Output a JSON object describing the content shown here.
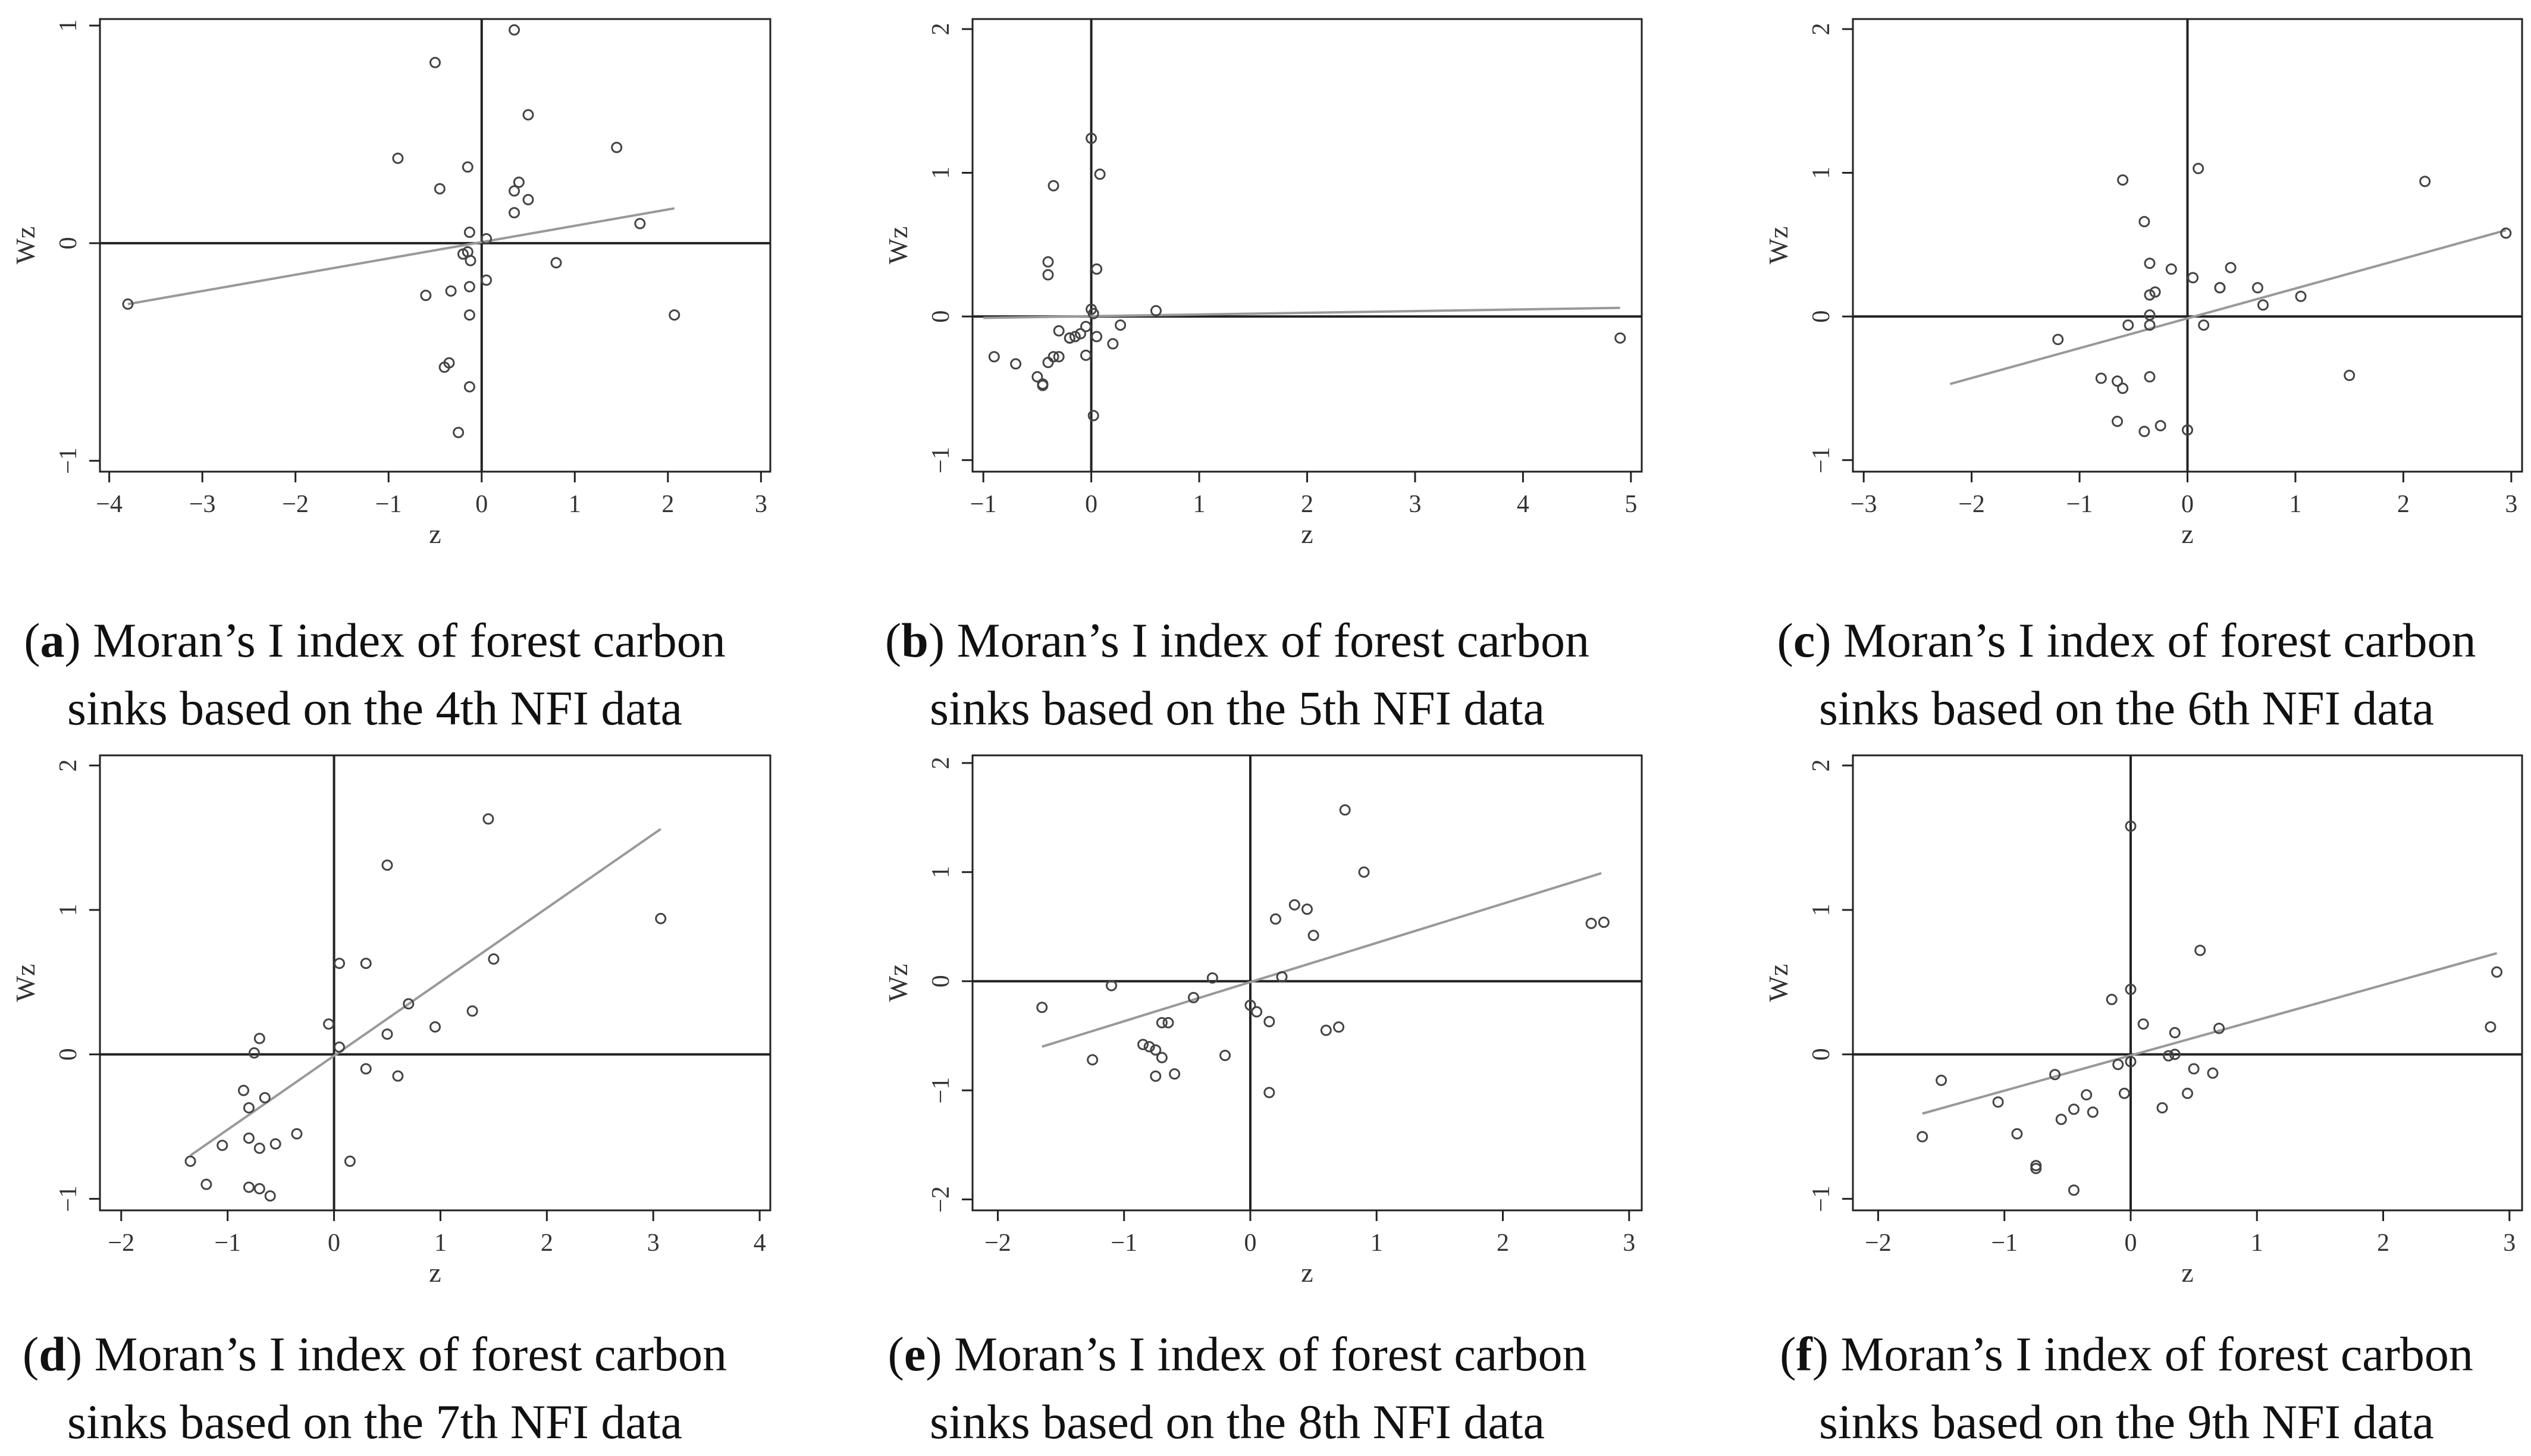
{
  "figure": {
    "x_axis_label": "z",
    "y_axis_label": "Wz"
  },
  "colors": {
    "frame": "#222222",
    "points": "#444444",
    "fit_line": "#999999",
    "text": "#333333"
  },
  "chart_data": [
    {
      "id": "a",
      "type": "scatter",
      "caption": {
        "letter": "a",
        "line1": "Moran’s I index of forest carbon",
        "line2": "sinks based on the 4th NFI data"
      },
      "xlabel": "z",
      "ylabel": "Wz",
      "xlim": [
        -4.1,
        3.1
      ],
      "ylim": [
        -1.05,
        1.03
      ],
      "xticks": [
        -4,
        -3,
        -2,
        -1,
        0,
        1,
        2,
        3
      ],
      "yticks": [
        -1,
        0,
        1
      ],
      "fit": {
        "x": [
          -3.8,
          2.07
        ],
        "y": [
          -0.28,
          0.16
        ]
      },
      "x": [
        -3.8,
        0.35,
        -0.5,
        0.5,
        -0.9,
        1.45,
        0.4,
        0.35,
        -0.15,
        0.5,
        -0.45,
        0.35,
        -0.13,
        0.05,
        -0.2,
        -0.15,
        -0.12,
        0.05,
        0.8,
        1.7,
        -0.13,
        2.07,
        -0.6,
        -0.33,
        -0.13,
        -0.35,
        -0.4,
        -0.13,
        -0.25
      ],
      "y": [
        -0.28,
        0.98,
        0.83,
        0.59,
        0.39,
        0.44,
        0.28,
        0.24,
        0.35,
        0.2,
        0.25,
        0.14,
        0.05,
        0.02,
        -0.05,
        -0.04,
        -0.08,
        -0.17,
        -0.09,
        0.09,
        -0.2,
        -0.33,
        -0.24,
        -0.22,
        -0.33,
        -0.55,
        -0.57,
        -0.66,
        -0.87
      ]
    },
    {
      "id": "b",
      "type": "scatter",
      "caption": {
        "letter": "b",
        "line1": "Moran’s I index of forest carbon",
        "line2": "sinks based on the 5th NFI data"
      },
      "xlabel": "z",
      "ylabel": "Wz",
      "xlim": [
        -1.1,
        5.1
      ],
      "ylim": [
        -1.08,
        2.07
      ],
      "xticks": [
        -1,
        0,
        1,
        2,
        3,
        4,
        5
      ],
      "yticks": [
        -1,
        0,
        1,
        2
      ],
      "fit": {
        "x": [
          -1.0,
          4.9
        ],
        "y": [
          -0.01,
          0.06
        ]
      },
      "x": [
        0.0,
        0.08,
        -0.35,
        -0.4,
        -0.4,
        0.05,
        0.6,
        0.0,
        0.02,
        4.9,
        -0.9,
        -0.7,
        -0.5,
        -0.45,
        -0.4,
        -0.35,
        -0.3,
        -0.2,
        -0.15,
        -0.1,
        -0.05,
        -0.3,
        0.05,
        0.2,
        0.27,
        -0.45,
        0.02,
        -0.05,
        -0.2
      ],
      "y": [
        1.24,
        0.99,
        0.91,
        0.38,
        0.29,
        0.33,
        0.04,
        0.05,
        0.02,
        -0.15,
        -0.28,
        -0.33,
        -0.42,
        -0.47,
        -0.32,
        -0.28,
        -0.28,
        -0.15,
        -0.14,
        -0.12,
        -0.07,
        -0.1,
        -0.14,
        -0.19,
        -0.06,
        -0.48,
        -0.69,
        -0.27,
        -0.15
      ]
    },
    {
      "id": "c",
      "type": "scatter",
      "caption": {
        "letter": "c",
        "line1": "Moran’s I index of forest carbon",
        "line2": "sinks based on the 6th NFI data"
      },
      "xlabel": "z",
      "ylabel": "Wz",
      "xlim": [
        -3.1,
        3.1
      ],
      "ylim": [
        -1.08,
        2.07
      ],
      "xticks": [
        -3,
        -2,
        -1,
        0,
        1,
        2,
        3
      ],
      "yticks": [
        -1,
        0,
        1,
        2
      ],
      "fit": {
        "x": [
          -2.2,
          2.95
        ],
        "y": [
          -0.47,
          0.6
        ]
      },
      "x": [
        -0.6,
        0.1,
        2.2,
        -0.4,
        2.95,
        -0.35,
        -0.15,
        0.3,
        0.4,
        0.05,
        -0.35,
        -0.3,
        -0.35,
        0.3,
        0.65,
        0.7,
        1.05,
        -0.35,
        -0.55,
        0.15,
        -1.2,
        -0.35,
        -0.8,
        -0.65,
        -0.6,
        1.5,
        -0.65,
        -0.4,
        -0.25,
        0.0
      ],
      "y": [
        0.95,
        1.03,
        0.94,
        0.66,
        0.58,
        0.37,
        0.33,
        0.2,
        0.34,
        0.27,
        0.15,
        0.17,
        0.01,
        0.2,
        0.2,
        0.08,
        0.14,
        -0.06,
        -0.06,
        -0.06,
        -0.16,
        -0.42,
        -0.43,
        -0.45,
        -0.5,
        -0.41,
        -0.73,
        -0.8,
        -0.76,
        -0.79
      ]
    },
    {
      "id": "d",
      "type": "scatter",
      "caption": {
        "letter": "d",
        "line1": "Moran’s I index of forest carbon",
        "line2": "sinks based on the 7th NFI data"
      },
      "xlabel": "z",
      "ylabel": "Wz",
      "xlim": [
        -2.2,
        4.1
      ],
      "ylim": [
        -1.08,
        2.07
      ],
      "xticks": [
        -2,
        -1,
        0,
        1,
        2,
        3,
        4
      ],
      "yticks": [
        -1,
        0,
        1,
        2
      ],
      "fit": {
        "x": [
          -1.35,
          3.07
        ],
        "y": [
          -0.7,
          1.56
        ]
      },
      "x": [
        1.45,
        0.5,
        3.07,
        0.05,
        0.3,
        1.5,
        0.7,
        1.3,
        0.95,
        -0.05,
        0.05,
        0.5,
        0.3,
        0.6,
        -0.7,
        -0.75,
        -0.65,
        -0.85,
        -0.8,
        -1.05,
        -0.35,
        -0.55,
        -0.8,
        -0.7,
        0.15,
        -1.35,
        -1.2,
        -0.8,
        -0.7,
        -0.6
      ],
      "y": [
        1.63,
        1.31,
        0.94,
        0.63,
        0.63,
        0.66,
        0.35,
        0.3,
        0.19,
        0.21,
        0.05,
        0.14,
        -0.1,
        -0.15,
        0.11,
        0.01,
        -0.3,
        -0.25,
        -0.37,
        -0.63,
        -0.55,
        -0.62,
        -0.58,
        -0.65,
        -0.74,
        -0.74,
        -0.9,
        -0.92,
        -0.93,
        -0.98
      ]
    },
    {
      "id": "e",
      "type": "scatter",
      "caption": {
        "letter": "e",
        "line1": "Moran’s I index of forest carbon",
        "line2": "sinks based on the 8th NFI data"
      },
      "xlabel": "z",
      "ylabel": "Wz",
      "xlim": [
        -2.2,
        3.1
      ],
      "ylim": [
        -2.1,
        2.07
      ],
      "xticks": [
        -2,
        -1,
        0,
        1,
        2,
        3
      ],
      "yticks": [
        -2,
        -1,
        0,
        1,
        2
      ],
      "fit": {
        "x": [
          -1.65,
          2.78
        ],
        "y": [
          -0.6,
          0.99
        ]
      },
      "x": [
        0.75,
        0.9,
        0.35,
        0.45,
        0.2,
        0.5,
        2.7,
        2.8,
        -0.3,
        0.25,
        -1.1,
        -1.65,
        -1.25,
        -0.45,
        -0.7,
        -0.8,
        -0.75,
        -0.65,
        -0.7,
        -0.6,
        -0.2,
        0.0,
        0.05,
        0.15,
        0.6,
        0.7,
        0.15,
        -0.85,
        -0.75
      ],
      "y": [
        1.57,
        1.0,
        0.7,
        0.66,
        0.57,
        0.42,
        0.53,
        0.54,
        0.03,
        0.04,
        -0.04,
        -0.24,
        -0.72,
        -0.15,
        -0.38,
        -0.6,
        -0.63,
        -0.38,
        -0.7,
        -0.85,
        -0.68,
        -0.22,
        -0.28,
        -0.37,
        -0.45,
        -0.42,
        -1.02,
        -0.58,
        -0.87
      ]
    },
    {
      "id": "f",
      "type": "scatter",
      "caption": {
        "letter": "f",
        "line1": "Moran’s I index of forest carbon",
        "line2": "sinks based on the 9th NFI data"
      },
      "xlabel": "z",
      "ylabel": "Wz",
      "xlim": [
        -2.2,
        3.1
      ],
      "ylim": [
        -1.08,
        2.07
      ],
      "xticks": [
        -2,
        -1,
        0,
        1,
        2,
        3
      ],
      "yticks": [
        -1,
        0,
        1,
        2
      ],
      "fit": {
        "x": [
          -1.65,
          2.9
        ],
        "y": [
          -0.41,
          0.7
        ]
      },
      "x": [
        0.0,
        0.55,
        2.9,
        0.0,
        0.1,
        0.35,
        0.7,
        2.85,
        -0.15,
        0.0,
        0.35,
        -0.1,
        0.3,
        0.65,
        0.5,
        -1.5,
        -1.05,
        -0.6,
        -0.35,
        -0.55,
        -0.3,
        -0.45,
        -0.05,
        0.45,
        0.25,
        -1.65,
        -0.9,
        -0.75,
        -0.75,
        -0.45
      ],
      "y": [
        1.58,
        0.72,
        0.57,
        0.45,
        0.21,
        0.15,
        0.18,
        0.19,
        0.38,
        -0.05,
        0.0,
        -0.07,
        -0.01,
        -0.13,
        -0.1,
        -0.18,
        -0.33,
        -0.14,
        -0.28,
        -0.45,
        -0.4,
        -0.38,
        -0.27,
        -0.27,
        -0.37,
        -0.57,
        -0.55,
        -0.77,
        -0.79,
        -0.94
      ]
    }
  ]
}
